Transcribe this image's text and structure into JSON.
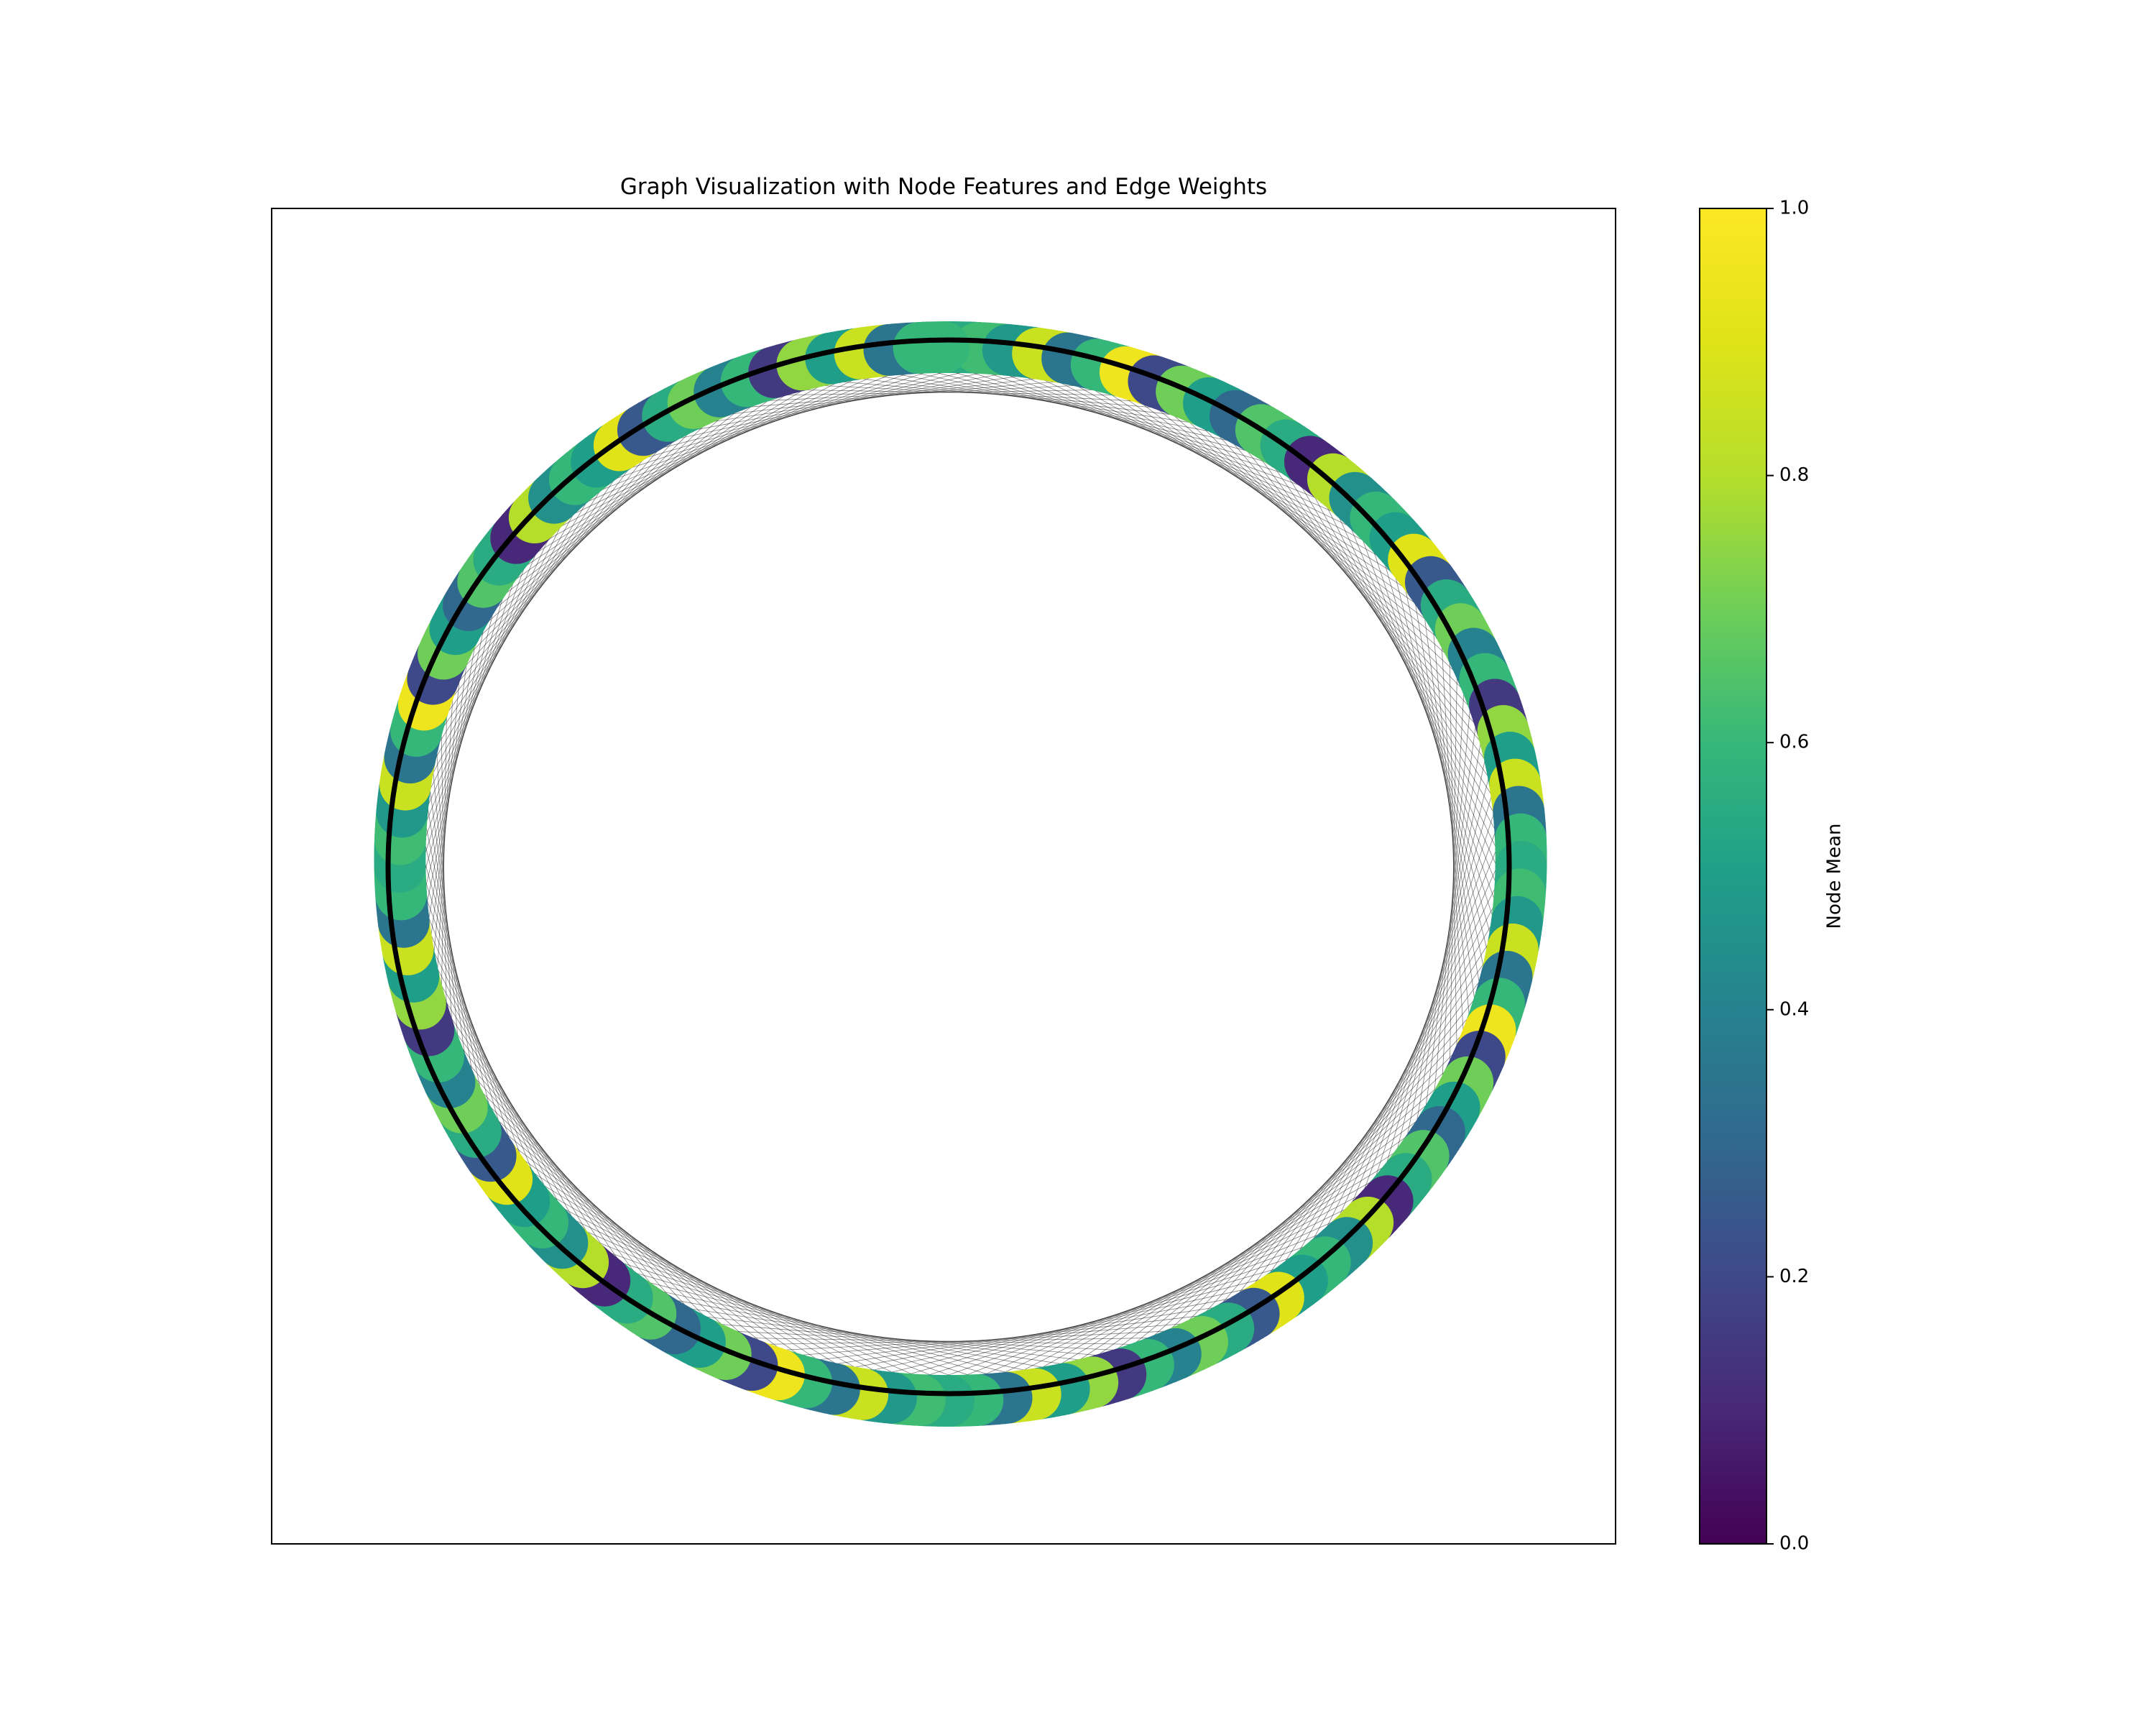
{
  "chart_data": {
    "type": "network-graph",
    "title": "Graph Visualization with Node Features and Edge Weights",
    "layout": "circular",
    "axes_visible": false,
    "node_color_metric": "Node Mean",
    "colormap": "viridis",
    "color_range": [
      0,
      1
    ],
    "colorbar": {
      "label": "Node Mean",
      "ticks": [
        0.0,
        0.2,
        0.4,
        0.6,
        0.8,
        1.0
      ],
      "tick_labels": [
        "0.0",
        "0.2",
        "0.4",
        "0.6",
        "0.8",
        "1.0"
      ],
      "placement": "right"
    },
    "nodes": {
      "arrangement": "ring",
      "mean_values_sample": [
        0.55,
        0.62,
        0.48,
        0.85,
        0.35,
        0.6,
        0.95,
        0.2,
        0.7,
        0.5,
        0.3,
        0.65,
        0.55,
        0.1,
        0.8,
        0.45,
        0.6,
        0.5,
        0.9,
        0.25,
        0.55,
        0.7,
        0.4,
        0.6,
        0.15,
        0.75,
        0.5,
        0.85,
        0.35,
        0.6
      ]
    },
    "edges": {
      "color": "black",
      "style": "thin curved lines connecting nodes around the ring"
    }
  }
}
